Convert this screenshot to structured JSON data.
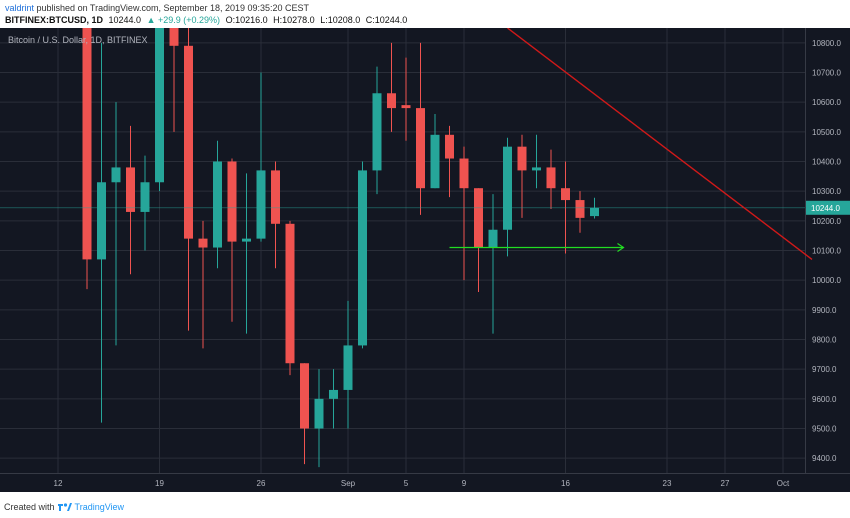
{
  "header": {
    "user": "valdrint",
    "published_text": "published on TradingView.com, September 18, 2019 09:35:20 CEST",
    "symbol": "BITFINEX:BTCUSD, 1D",
    "last": "10244.0",
    "change": "▲ +29.9 (+0.29%)",
    "open": "O:10216.0",
    "high": "H:10278.0",
    "low": "L:10208.0",
    "close": "C:10244.0"
  },
  "chart_title": "Bitcoin / U.S. Dollar, 1D, BITFINEX",
  "footer": {
    "created_with": "Created with",
    "brand": "TradingView"
  },
  "colors": {
    "background": "#131722",
    "up": "#26a69a",
    "down": "#ef5350",
    "grid": "#2a2e39",
    "trendline": "#d01919",
    "arrow": "#22dd22",
    "price_label": "#26a69a"
  },
  "chart_data": {
    "type": "candlestick",
    "title": "Bitcoin / U.S. Dollar, 1D, BITFINEX",
    "ylim": [
      9350,
      10850
    ],
    "y_ticks": [
      9400,
      9500,
      9600,
      9700,
      9800,
      9900,
      10000,
      10100,
      10200,
      10300,
      10400,
      10500,
      10600,
      10700,
      10800
    ],
    "y_tick_labels": [
      "9400.0",
      "9500.0",
      "9600.0",
      "9700.0",
      "9800.0",
      "9900.0",
      "10000.0",
      "10100.0",
      "10200.0",
      "10300.0",
      "10400.0",
      "10500.0",
      "10600.0",
      "10700.0",
      "10800.0"
    ],
    "x_ticks": [
      {
        "label": "12",
        "day": "2019-08-12"
      },
      {
        "label": "19",
        "day": "2019-08-19"
      },
      {
        "label": "26",
        "day": "2019-08-26"
      },
      {
        "label": "Sep",
        "day": "2019-09-01"
      },
      {
        "label": "5",
        "day": "2019-09-05"
      },
      {
        "label": "9",
        "day": "2019-09-09"
      },
      {
        "label": "16",
        "day": "2019-09-16"
      },
      {
        "label": "23",
        "day": "2019-09-23"
      },
      {
        "label": "27",
        "day": "2019-09-27"
      },
      {
        "label": "Oct",
        "day": "2019-10-01"
      }
    ],
    "candles": [
      {
        "date": "2019-08-14",
        "open": 10850,
        "high": 10850,
        "low": 9970,
        "close": 10070
      },
      {
        "date": "2019-08-15",
        "open": 10070,
        "high": 10800,
        "low": 9520,
        "close": 10330
      },
      {
        "date": "2019-08-16",
        "open": 10330,
        "high": 10600,
        "low": 9780,
        "close": 10380
      },
      {
        "date": "2019-08-17",
        "open": 10380,
        "high": 10520,
        "low": 10020,
        "close": 10230
      },
      {
        "date": "2019-08-18",
        "open": 10230,
        "high": 10420,
        "low": 10100,
        "close": 10330
      },
      {
        "date": "2019-08-19",
        "open": 10330,
        "high": 10850,
        "low": 10300,
        "close": 10850
      },
      {
        "date": "2019-08-20",
        "open": 10850,
        "high": 10850,
        "low": 10500,
        "close": 10790
      },
      {
        "date": "2019-08-21",
        "open": 10790,
        "high": 10850,
        "low": 9830,
        "close": 10140
      },
      {
        "date": "2019-08-22",
        "open": 10140,
        "high": 10200,
        "low": 9770,
        "close": 10110
      },
      {
        "date": "2019-08-23",
        "open": 10110,
        "high": 10470,
        "low": 10040,
        "close": 10400
      },
      {
        "date": "2019-08-24",
        "open": 10400,
        "high": 10410,
        "low": 9860,
        "close": 10130
      },
      {
        "date": "2019-08-25",
        "open": 10130,
        "high": 10360,
        "low": 9820,
        "close": 10140
      },
      {
        "date": "2019-08-26",
        "open": 10140,
        "high": 10700,
        "low": 10130,
        "close": 10370
      },
      {
        "date": "2019-08-27",
        "open": 10370,
        "high": 10400,
        "low": 10040,
        "close": 10190
      },
      {
        "date": "2019-08-28",
        "open": 10190,
        "high": 10200,
        "low": 9680,
        "close": 9720
      },
      {
        "date": "2019-08-29",
        "open": 9720,
        "high": 9720,
        "low": 9380,
        "close": 9500
      },
      {
        "date": "2019-08-30",
        "open": 9500,
        "high": 9700,
        "low": 9370,
        "close": 9600
      },
      {
        "date": "2019-08-31",
        "open": 9600,
        "high": 9700,
        "low": 9500,
        "close": 9630
      },
      {
        "date": "2019-09-01",
        "open": 9630,
        "high": 9930,
        "low": 9500,
        "close": 9780
      },
      {
        "date": "2019-09-02",
        "open": 9780,
        "high": 10400,
        "low": 9770,
        "close": 10370
      },
      {
        "date": "2019-09-03",
        "open": 10370,
        "high": 10720,
        "low": 10290,
        "close": 10630
      },
      {
        "date": "2019-09-04",
        "open": 10630,
        "high": 10800,
        "low": 10500,
        "close": 10580
      },
      {
        "date": "2019-09-05",
        "open": 10590,
        "high": 10750,
        "low": 10470,
        "close": 10580
      },
      {
        "date": "2019-09-06",
        "open": 10580,
        "high": 10800,
        "low": 10220,
        "close": 10310
      },
      {
        "date": "2019-09-07",
        "open": 10310,
        "high": 10560,
        "low": 10310,
        "close": 10490
      },
      {
        "date": "2019-09-08",
        "open": 10490,
        "high": 10520,
        "low": 10280,
        "close": 10410
      },
      {
        "date": "2019-09-09",
        "open": 10410,
        "high": 10450,
        "low": 10000,
        "close": 10310
      },
      {
        "date": "2019-09-10",
        "open": 10310,
        "high": 10310,
        "low": 9960,
        "close": 10110
      },
      {
        "date": "2019-09-11",
        "open": 10110,
        "high": 10290,
        "low": 9820,
        "close": 10170
      },
      {
        "date": "2019-09-12",
        "open": 10170,
        "high": 10480,
        "low": 10080,
        "close": 10450
      },
      {
        "date": "2019-09-13",
        "open": 10450,
        "high": 10490,
        "low": 10210,
        "close": 10370
      },
      {
        "date": "2019-09-14",
        "open": 10370,
        "high": 10490,
        "low": 10310,
        "close": 10380
      },
      {
        "date": "2019-09-15",
        "open": 10380,
        "high": 10440,
        "low": 10240,
        "close": 10310
      },
      {
        "date": "2019-09-16",
        "open": 10310,
        "high": 10400,
        "low": 10090,
        "close": 10270
      },
      {
        "date": "2019-09-17",
        "open": 10270,
        "high": 10300,
        "low": 10160,
        "close": 10210
      },
      {
        "date": "2019-09-18",
        "open": 10216,
        "high": 10278,
        "low": 10208,
        "close": 10244
      }
    ],
    "trendline": {
      "from": {
        "date": "2019-09-12",
        "price": 10850
      },
      "to": {
        "date": "2019-10-03",
        "price": 10070
      }
    },
    "support_arrow": {
      "from": {
        "date": "2019-09-08",
        "price": 10110
      },
      "to": {
        "date": "2019-09-20",
        "price": 10110
      }
    },
    "last_price_label": "10244.0",
    "last_price": 10244
  }
}
